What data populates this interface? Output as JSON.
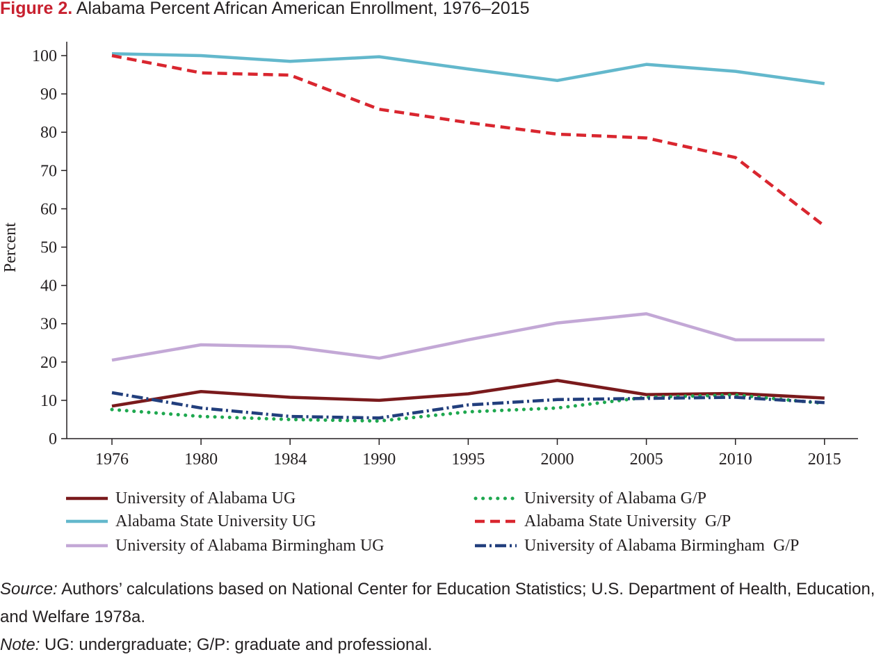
{
  "title": {
    "figure_label": "Figure 2.",
    "text": "Alabama Percent African American Enrollment, 1976–2015"
  },
  "chart_data": {
    "type": "line",
    "title": "Alabama Percent African American Enrollment, 1976–2015",
    "xlabel": "",
    "ylabel": "Percent",
    "categories": [
      "1976",
      "1980",
      "1984",
      "1990",
      "1995",
      "2000",
      "2005",
      "2010",
      "2015"
    ],
    "yticks": [
      0,
      10,
      20,
      30,
      40,
      50,
      60,
      70,
      80,
      90,
      100
    ],
    "ylim": [
      0,
      100
    ],
    "grid": false,
    "legend_position": "bottom",
    "series": [
      {
        "name": "University of Alabama UG",
        "color": "#7a1a1c",
        "style": "solid",
        "values": [
          8.5,
          12.3,
          10.8,
          10.0,
          11.7,
          15.2,
          11.5,
          11.8,
          10.6
        ]
      },
      {
        "name": "University of Alabama G/P",
        "color": "#1ea84f",
        "style": "dotted",
        "values": [
          7.6,
          5.8,
          5.0,
          4.6,
          7.0,
          8.0,
          10.8,
          11.4,
          9.2
        ]
      },
      {
        "name": "Alabama State University UG",
        "color": "#63b8cc",
        "style": "solid",
        "values": [
          100.5,
          100.0,
          98.5,
          99.7,
          96.5,
          93.5,
          97.7,
          95.9,
          92.7
        ]
      },
      {
        "name": "Alabama State University  G/P",
        "color": "#d9262f",
        "style": "dashed",
        "values": [
          100.0,
          95.5,
          94.9,
          86.0,
          82.5,
          79.5,
          78.5,
          73.4,
          55.5
        ]
      },
      {
        "name": "University of Alabama Birmingham UG",
        "color": "#c3a8d6",
        "style": "solid",
        "values": [
          20.5,
          24.5,
          24.0,
          21.0,
          25.8,
          30.2,
          32.6,
          25.8,
          25.8
        ]
      },
      {
        "name": "University of Alabama Birmingham  G/P",
        "color": "#223f7d",
        "style": "dashdot",
        "values": [
          12.0,
          8.0,
          5.8,
          5.4,
          8.8,
          10.2,
          10.5,
          10.8,
          9.4
        ]
      }
    ]
  },
  "notes": {
    "source_label": "Source:",
    "source_text": " Authors’ calculations based on National Center for Education Statistics; U.S. Department of Health, Education, and Welfare 1978a.",
    "note_label": "Note:",
    "note_text": " UG: undergraduate; G/P: graduate and professional."
  }
}
